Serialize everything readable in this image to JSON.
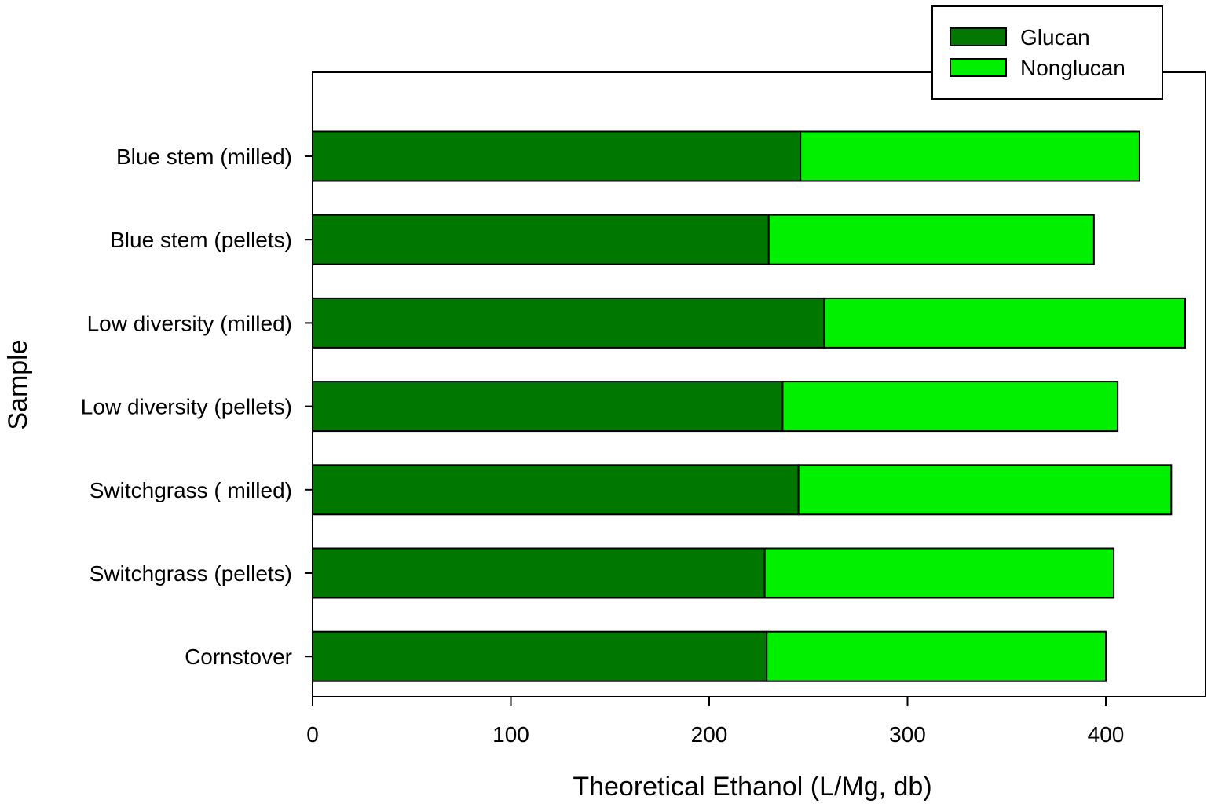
{
  "chart_data": {
    "type": "bar",
    "orientation": "horizontal",
    "stacked": true,
    "categories": [
      "Blue stem (milled)",
      "Blue stem (pellets)",
      "Low diversity (milled)",
      "Low diversity (pellets)",
      "Switchgrass ( milled)",
      "Switchgrass (pellets)",
      "Cornstover"
    ],
    "series": [
      {
        "name": "Glucan",
        "color": "#007800",
        "values": [
          246,
          230,
          258,
          237,
          245,
          228,
          229
        ]
      },
      {
        "name": "Nonglucan",
        "color": "#00f000",
        "values": [
          171,
          164,
          182,
          169,
          188,
          176,
          171
        ]
      }
    ],
    "xlabel": "Theoretical Ethanol (L/Mg, db)",
    "ylabel": "Sample",
    "xlim": [
      0,
      450
    ],
    "xticks": [
      0,
      100,
      200,
      300,
      400
    ],
    "grid": false,
    "legend_position": "top-right"
  }
}
